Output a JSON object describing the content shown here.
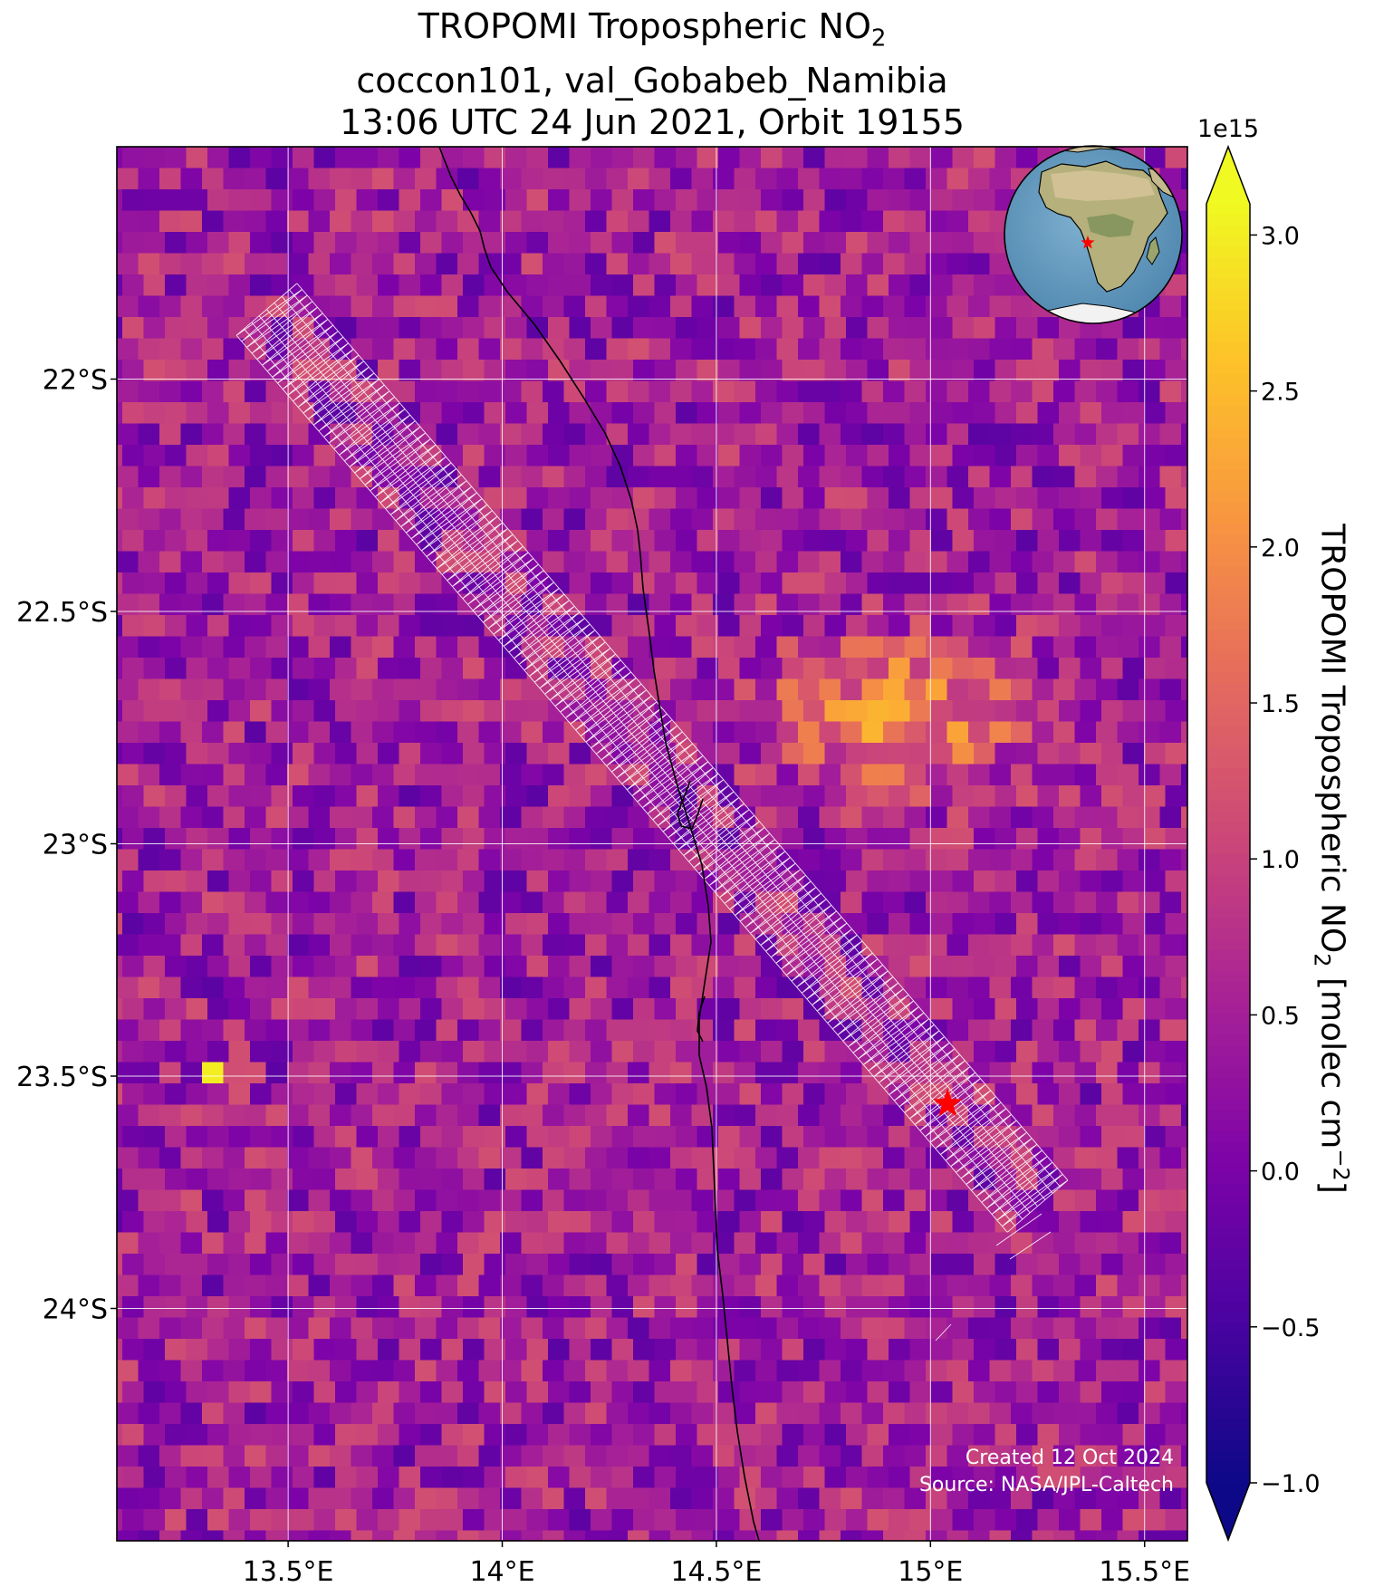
{
  "title": {
    "line1_prefix": "TROPOMI Tropospheric NO",
    "line1_sub": "2",
    "line2": "coccon101, val_Gobabeb_Namibia",
    "line3": "13:06 UTC 24 Jun 2021, Orbit 19155"
  },
  "colorbar": {
    "colormap": "plasma",
    "exponent_label": "1e15",
    "label_prefix": "TROPOMI Tropospheric NO",
    "label_sub": "2",
    "label_suffix": " [molec cm",
    "label_sup": "−2",
    "label_close": "]",
    "vmin": -1.0,
    "vmax": 3.1,
    "extend": "both",
    "ticks": [
      {
        "value": -1.0,
        "label": "−1.0"
      },
      {
        "value": -0.5,
        "label": "−0.5"
      },
      {
        "value": 0.0,
        "label": "0.0"
      },
      {
        "value": 0.5,
        "label": "0.5"
      },
      {
        "value": 1.0,
        "label": "1.0"
      },
      {
        "value": 1.5,
        "label": "1.5"
      },
      {
        "value": 2.0,
        "label": "2.0"
      },
      {
        "value": 2.5,
        "label": "2.5"
      },
      {
        "value": 3.0,
        "label": "3.0"
      }
    ]
  },
  "map": {
    "lon_range": [
      13.1,
      15.6
    ],
    "lat_range": [
      -24.5,
      -21.5
    ],
    "grid": true,
    "lon_ticks": [
      {
        "value": 13.5,
        "label": "13.5°E"
      },
      {
        "value": 14.0,
        "label": "14°E"
      },
      {
        "value": 14.5,
        "label": "14.5°E"
      },
      {
        "value": 15.0,
        "label": "15°E"
      },
      {
        "value": 15.5,
        "label": "15.5°E"
      }
    ],
    "lat_ticks": [
      {
        "value": -22.0,
        "label": "22°S"
      },
      {
        "value": -22.5,
        "label": "22.5°S"
      },
      {
        "value": -23.0,
        "label": "23°S"
      },
      {
        "value": -23.5,
        "label": "23.5°S"
      },
      {
        "value": -24.0,
        "label": "24°S"
      }
    ],
    "site": {
      "name": "val_Gobabeb_Namibia",
      "lon": 15.04,
      "lat": -23.56,
      "marker": "star",
      "color": "#ff0000"
    },
    "hotspot": {
      "lon": 14.9,
      "lat": -22.7,
      "value": 2.3
    },
    "bright_pixel": {
      "lon": 13.3,
      "lat": -23.48,
      "value": 3.0
    },
    "coastline_color": "#000000",
    "footprint_color": "#ffffff",
    "swath": {
      "start": {
        "lon": 13.45,
        "lat": -21.85
      },
      "end": {
        "lon": 15.25,
        "lat": -23.78
      }
    },
    "inset_globe": {
      "features": "Africa",
      "marker": "star",
      "marker_color": "#ff0000"
    }
  },
  "credits": {
    "line1": "Created 12 Oct 2024",
    "line2": "Source: NASA/JPL-Caltech"
  }
}
